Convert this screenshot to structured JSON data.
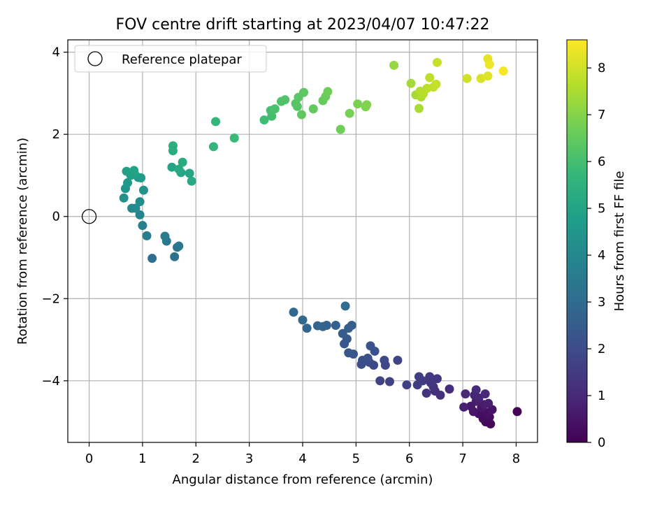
{
  "chart_data": {
    "type": "scatter",
    "title": "FOV centre drift starting at 2023/04/07 10:47:22",
    "xlabel": "Angular distance from reference (arcmin)",
    "ylabel": "Rotation from reference (arcmin)",
    "xlim": [
      -0.4,
      8.4
    ],
    "ylim": [
      -5.5,
      4.3
    ],
    "xticks": [
      0,
      1,
      2,
      3,
      4,
      5,
      6,
      7,
      8
    ],
    "yticks": [
      -4,
      -2,
      0,
      2,
      4
    ],
    "xtick_labels": [
      "0",
      "1",
      "2",
      "3",
      "4",
      "5",
      "6",
      "7",
      "8"
    ],
    "ytick_labels": [
      "−4",
      "−2",
      "0",
      "2",
      "4"
    ],
    "grid": true,
    "legend": {
      "position": "top-left",
      "label": "Reference platepar"
    },
    "reference_point": {
      "x": 0,
      "y": 0
    },
    "colorbar": {
      "label": "Hours from first FF file",
      "min": 0,
      "max": 8.6,
      "ticks": [
        0,
        1,
        2,
        3,
        4,
        5,
        6,
        7,
        8
      ],
      "tick_labels": [
        "0",
        "1",
        "2",
        "3",
        "4",
        "5",
        "6",
        "7",
        "8"
      ],
      "colormap": "viridis"
    },
    "colormap_stops": [
      "#440154",
      "#482878",
      "#3e4989",
      "#31688e",
      "#26828e",
      "#1f9e89",
      "#35b779",
      "#6ece58",
      "#b5de2b",
      "#fde725"
    ],
    "points": [
      [
        8.02,
        -4.75,
        0.1
      ],
      [
        7.52,
        -5.05,
        0.15
      ],
      [
        7.43,
        -5.0,
        0.2
      ],
      [
        7.38,
        -4.92,
        0.25
      ],
      [
        7.5,
        -4.88,
        0.3
      ],
      [
        7.3,
        -4.8,
        0.35
      ],
      [
        7.45,
        -4.78,
        0.4
      ],
      [
        7.55,
        -4.7,
        0.45
      ],
      [
        7.35,
        -4.65,
        0.5
      ],
      [
        7.2,
        -4.75,
        0.55
      ],
      [
        7.15,
        -4.62,
        0.6
      ],
      [
        7.4,
        -4.58,
        0.65
      ],
      [
        7.25,
        -4.5,
        0.7
      ],
      [
        7.48,
        -4.55,
        0.75
      ],
      [
        7.02,
        -4.64,
        0.8
      ],
      [
        7.3,
        -4.42,
        0.85
      ],
      [
        7.22,
        -4.35,
        0.9
      ],
      [
        7.42,
        -4.32,
        0.95
      ],
      [
        7.05,
        -4.32,
        1.0
      ],
      [
        7.25,
        -4.22,
        1.05
      ],
      [
        6.75,
        -4.2,
        1.1
      ],
      [
        6.58,
        -4.35,
        1.15
      ],
      [
        6.48,
        -4.25,
        1.2
      ],
      [
        6.45,
        -4.15,
        1.25
      ],
      [
        6.32,
        -4.3,
        1.3
      ],
      [
        6.4,
        -4.05,
        1.35
      ],
      [
        6.52,
        -3.95,
        1.4
      ],
      [
        6.38,
        -3.9,
        1.45
      ],
      [
        6.25,
        -4.0,
        1.5
      ],
      [
        6.15,
        -4.1,
        1.55
      ],
      [
        6.18,
        -3.9,
        1.6
      ],
      [
        5.95,
        -4.1,
        1.65
      ],
      [
        5.63,
        -4.02,
        1.7
      ],
      [
        5.45,
        -4.0,
        1.75
      ],
      [
        5.78,
        -3.5,
        1.8
      ],
      [
        5.55,
        -3.62,
        1.85
      ],
      [
        5.53,
        -3.5,
        1.9
      ],
      [
        5.33,
        -3.62,
        1.95
      ],
      [
        5.25,
        -3.55,
        2.0
      ],
      [
        5.1,
        -3.6,
        2.05
      ],
      [
        5.12,
        -3.5,
        2.1
      ],
      [
        5.22,
        -3.45,
        2.15
      ],
      [
        5.35,
        -3.28,
        2.2
      ],
      [
        5.27,
        -3.15,
        2.25
      ],
      [
        4.95,
        -3.35,
        2.3
      ],
      [
        4.86,
        -3.32,
        2.35
      ],
      [
        4.78,
        -3.1,
        2.4
      ],
      [
        4.83,
        -2.98,
        2.45
      ],
      [
        4.75,
        -2.85,
        2.5
      ],
      [
        4.92,
        -2.65,
        2.55
      ],
      [
        4.86,
        -2.72,
        2.6
      ],
      [
        4.62,
        -2.65,
        2.65
      ],
      [
        4.45,
        -2.65,
        2.7
      ],
      [
        4.38,
        -2.68,
        2.75
      ],
      [
        4.28,
        -2.66,
        2.8
      ],
      [
        4.08,
        -2.72,
        2.85
      ],
      [
        4.0,
        -2.52,
        2.9
      ],
      [
        3.83,
        -2.33,
        2.95
      ],
      [
        4.8,
        -2.18,
        3.0
      ],
      [
        1.18,
        -1.02,
        3.1
      ],
      [
        1.6,
        -0.98,
        3.2
      ],
      [
        1.65,
        -0.75,
        3.3
      ],
      [
        1.68,
        -0.72,
        3.4
      ],
      [
        1.45,
        -0.6,
        3.5
      ],
      [
        1.42,
        -0.48,
        3.6
      ],
      [
        1.08,
        -0.47,
        3.7
      ],
      [
        1.0,
        -0.22,
        3.8
      ],
      [
        0.95,
        0.04,
        3.9
      ],
      [
        0.8,
        0.2,
        4.0
      ],
      [
        0.87,
        0.2,
        4.1
      ],
      [
        0.95,
        0.36,
        4.2
      ],
      [
        0.65,
        0.45,
        4.3
      ],
      [
        1.02,
        0.64,
        4.4
      ],
      [
        0.68,
        0.68,
        4.5
      ],
      [
        0.72,
        0.82,
        4.6
      ],
      [
        0.97,
        0.94,
        4.7
      ],
      [
        0.92,
        0.95,
        4.75
      ],
      [
        0.85,
        1.04,
        4.8
      ],
      [
        0.78,
        1.0,
        4.85
      ],
      [
        0.7,
        1.1,
        4.9
      ],
      [
        0.84,
        1.12,
        4.95
      ],
      [
        1.55,
        1.2,
        5.0
      ],
      [
        1.72,
        1.07,
        5.05
      ],
      [
        1.88,
        1.05,
        5.1
      ],
      [
        1.92,
        0.86,
        5.15
      ],
      [
        1.68,
        1.15,
        5.2
      ],
      [
        1.75,
        1.32,
        5.25
      ],
      [
        1.57,
        1.6,
        5.3
      ],
      [
        1.57,
        1.72,
        5.4
      ],
      [
        2.33,
        1.7,
        5.6
      ],
      [
        2.37,
        2.31,
        5.7
      ],
      [
        2.72,
        1.91,
        5.8
      ],
      [
        3.28,
        2.35,
        5.9
      ],
      [
        3.42,
        2.44,
        6.0
      ],
      [
        3.4,
        2.58,
        6.05
      ],
      [
        3.48,
        2.62,
        6.1
      ],
      [
        3.6,
        2.8,
        6.15
      ],
      [
        3.67,
        2.84,
        6.2
      ],
      [
        3.9,
        2.68,
        6.25
      ],
      [
        3.87,
        2.75,
        6.3
      ],
      [
        3.92,
        2.9,
        6.35
      ],
      [
        4.02,
        3.02,
        6.4
      ],
      [
        3.98,
        2.48,
        6.45
      ],
      [
        4.2,
        2.62,
        6.5
      ],
      [
        4.38,
        2.82,
        6.55
      ],
      [
        4.43,
        2.92,
        6.6
      ],
      [
        4.47,
        3.04,
        6.65
      ],
      [
        4.71,
        2.12,
        6.7
      ],
      [
        4.88,
        2.51,
        6.8
      ],
      [
        5.03,
        2.74,
        6.85
      ],
      [
        5.18,
        2.67,
        6.9
      ],
      [
        5.2,
        2.72,
        6.95
      ],
      [
        5.71,
        3.68,
        7.2
      ],
      [
        6.03,
        3.24,
        7.4
      ],
      [
        6.12,
        2.96,
        7.45
      ],
      [
        6.18,
        2.63,
        7.5
      ],
      [
        6.22,
        2.91,
        7.55
      ],
      [
        6.2,
        3.05,
        7.6
      ],
      [
        6.26,
        2.99,
        7.65
      ],
      [
        6.33,
        3.12,
        7.7
      ],
      [
        6.38,
        3.38,
        7.75
      ],
      [
        6.45,
        3.15,
        7.8
      ],
      [
        6.5,
        3.22,
        7.85
      ],
      [
        6.52,
        3.75,
        7.9
      ],
      [
        7.08,
        3.36,
        8.0
      ],
      [
        7.34,
        3.36,
        8.1
      ],
      [
        7.47,
        3.42,
        8.2
      ],
      [
        7.47,
        3.84,
        8.3
      ],
      [
        7.5,
        3.7,
        8.4
      ],
      [
        7.76,
        3.54,
        8.5
      ]
    ]
  }
}
